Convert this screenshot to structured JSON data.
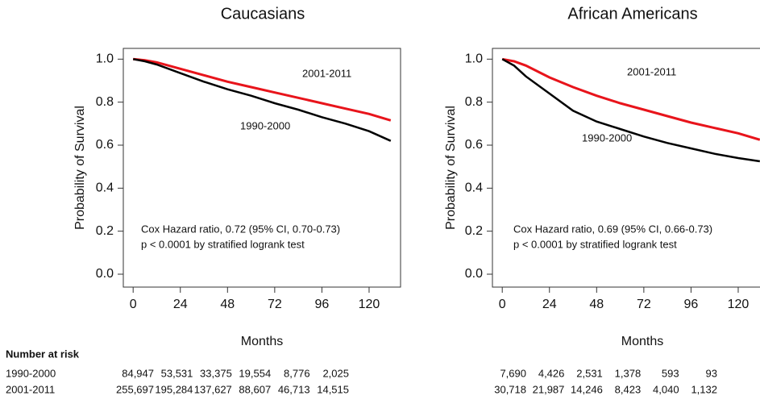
{
  "chart_data": [
    {
      "type": "line",
      "title": "Caucasians",
      "ylabel": "Probability of Survival",
      "xlabel": "Months",
      "x": [
        0,
        6,
        12,
        24,
        36,
        48,
        60,
        72,
        84,
        96,
        108,
        120,
        131
      ],
      "series": [
        {
          "name": "2001-2011",
          "color": "#e8141b",
          "values": [
            1.0,
            0.995,
            0.985,
            0.955,
            0.925,
            0.895,
            0.87,
            0.845,
            0.82,
            0.795,
            0.77,
            0.745,
            0.715
          ]
        },
        {
          "name": "1990-2000",
          "color": "#000000",
          "values": [
            1.0,
            0.99,
            0.975,
            0.935,
            0.895,
            0.86,
            0.83,
            0.795,
            0.765,
            0.73,
            0.7,
            0.665,
            0.62
          ]
        }
      ],
      "xlim": [
        -5,
        136
      ],
      "ylim": [
        -0.06,
        1.05
      ],
      "xticks": [
        0,
        24,
        48,
        72,
        96,
        120
      ],
      "yticks": [
        {
          "value": 0,
          "label": "0.0"
        },
        0.2,
        0.4,
        0.6,
        0.8,
        {
          "value": 1,
          "label": "1.0"
        }
      ],
      "annotations": [
        "Cox Hazard ratio, 0.72 (95% CI, 0.70-0.73)",
        "p < 0.0001 by stratified logrank test"
      ],
      "at_risk": [
        {
          "values": [
            84947,
            53531,
            33375,
            19554,
            8776,
            2025
          ],
          "value_labels": [
            "84,947",
            "53,531",
            "33,375",
            "19,554",
            "8,776",
            "2,025"
          ]
        },
        {
          "values": [
            255697,
            195284,
            137627,
            88607,
            46713,
            14515
          ],
          "value_labels": [
            "255,697",
            "195,284",
            "137,627",
            "88,607",
            "46,713",
            "14,515"
          ]
        }
      ]
    },
    {
      "type": "line",
      "title": "African Americans",
      "ylabel": "Probability of Survival",
      "xlabel": "Months",
      "x": [
        0,
        6,
        12,
        24,
        36,
        48,
        60,
        72,
        84,
        96,
        108,
        120,
        131
      ],
      "series": [
        {
          "name": "2001-2011",
          "color": "#e8141b",
          "values": [
            1.0,
            0.99,
            0.97,
            0.915,
            0.87,
            0.83,
            0.795,
            0.765,
            0.735,
            0.705,
            0.68,
            0.655,
            0.625
          ]
        },
        {
          "name": "1990-2000",
          "color": "#000000",
          "values": [
            1.0,
            0.97,
            0.92,
            0.84,
            0.76,
            0.71,
            0.675,
            0.64,
            0.61,
            0.585,
            0.56,
            0.54,
            0.525
          ]
        }
      ],
      "xlim": [
        -5,
        136
      ],
      "ylim": [
        -0.06,
        1.05
      ],
      "xticks": [
        0,
        24,
        48,
        72,
        96,
        120
      ],
      "yticks": [
        {
          "value": 0,
          "label": "0.0"
        },
        0.2,
        0.4,
        0.6,
        0.8,
        {
          "value": 1,
          "label": "1.0"
        }
      ],
      "annotations": [
        "Cox Hazard ratio, 0.69 (95% CI, 0.66-0.73)",
        "p < 0.0001 by stratified logrank test"
      ],
      "at_risk": [
        {
          "values": [
            7690,
            4426,
            2531,
            1378,
            593,
            93
          ],
          "value_labels": [
            "7,690",
            "4,426",
            "2,531",
            "1,378",
            "593",
            "93"
          ]
        },
        {
          "values": [
            30718,
            21987,
            14246,
            8423,
            4040,
            1132
          ],
          "value_labels": [
            "30,718",
            "21,987",
            "14,246",
            "8,423",
            "4,040",
            "1,132"
          ]
        }
      ]
    }
  ],
  "risk_table": {
    "title": "Number at risk",
    "row_labels": [
      "1990-2000",
      "2001-2011"
    ]
  }
}
